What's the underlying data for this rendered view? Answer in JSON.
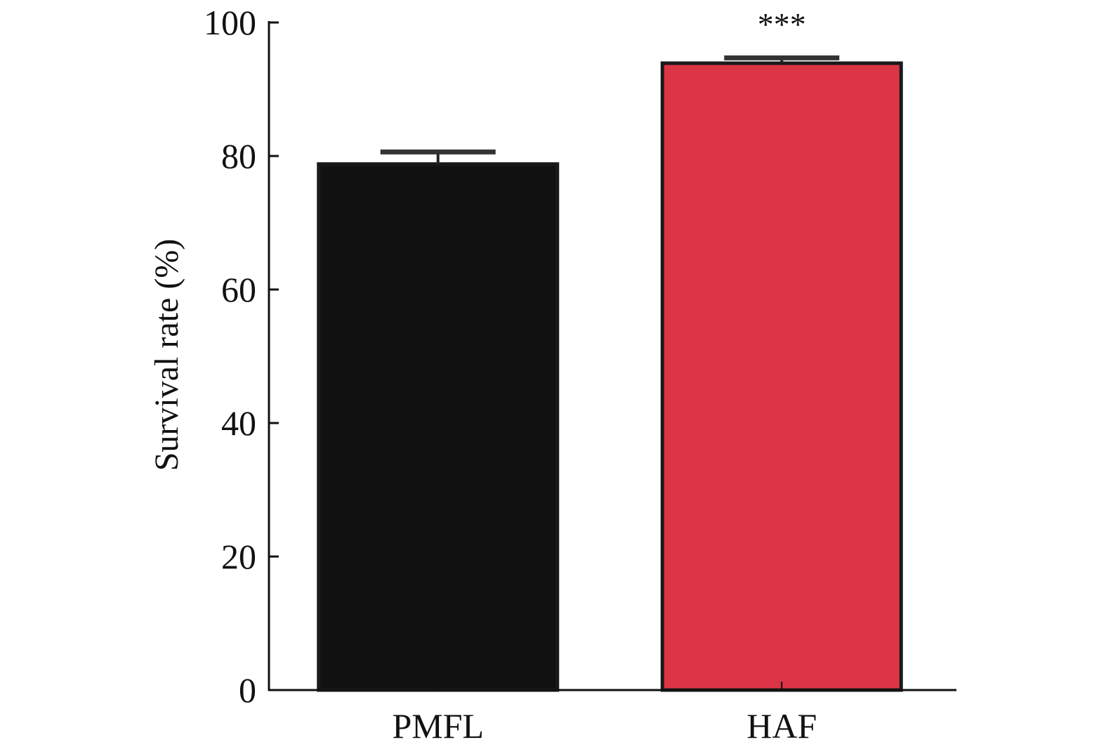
{
  "chart_data": {
    "type": "bar",
    "categories": [
      "PMFL",
      "HAF"
    ],
    "values": [
      78.8,
      93.9
    ],
    "errors": [
      1.8,
      0.8
    ],
    "colors": [
      "#111111",
      "#dc3545"
    ],
    "annotations": [
      "",
      "***"
    ],
    "title": "",
    "xlabel": "",
    "ylabel": "Survival rate (%)",
    "ylim": [
      0,
      100
    ],
    "yticks": [
      0,
      20,
      40,
      60,
      80,
      100
    ],
    "grid": false,
    "legend": "none"
  }
}
